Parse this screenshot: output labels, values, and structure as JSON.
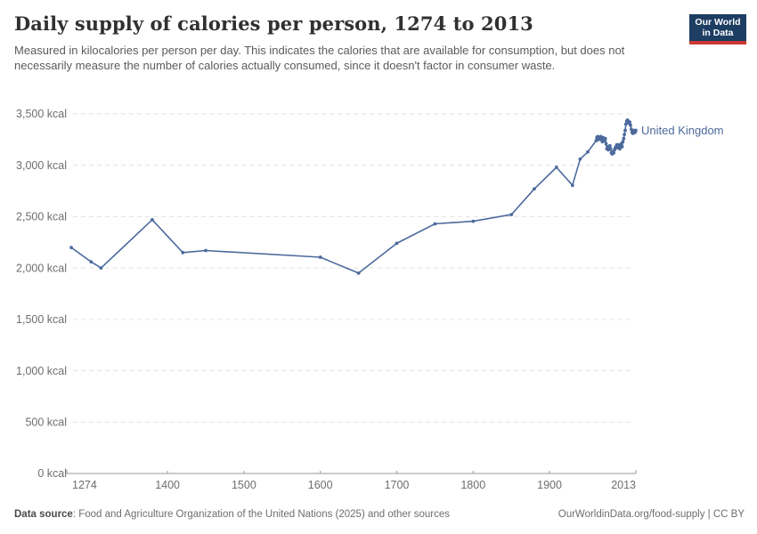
{
  "header": {
    "title": "Daily supply of calories per person, 1274 to 2013",
    "subtitle": "Measured in kilocalories per person per day. This indicates the calories that are available for consumption, but does not necessarily measure the number of calories actually consumed, since it doesn't factor in consumer waste."
  },
  "logo": {
    "line1": "Our World",
    "line2": "in Data",
    "bg_color": "#1d3d63",
    "bar_color": "#cb3a32"
  },
  "chart_data": {
    "type": "line",
    "title": "Daily supply of calories per person, 1274 to 2013",
    "unit": "kcal",
    "xlabel": "",
    "ylabel": "",
    "xlim": [
      1274,
      2013
    ],
    "ylim": [
      0,
      3500
    ],
    "x_ticks": [
      1274,
      1400,
      1500,
      1600,
      1700,
      1800,
      1900,
      2013
    ],
    "y_ticks": [
      0,
      500,
      1000,
      1500,
      2000,
      2500,
      3000,
      3500
    ],
    "y_tick_suffix": " kcal",
    "grid": "horizontal-dashed",
    "legend_position": "line-end-label",
    "line_color": "#4C6A9C",
    "grid_color": "#e2e2e2",
    "axis_color": "#9a9a9a",
    "tick_label_color": "#6e6e6e",
    "series": [
      {
        "name": "United Kingdom",
        "points": [
          [
            1274,
            2200
          ],
          [
            1300,
            2060
          ],
          [
            1313,
            2000
          ],
          [
            1380,
            2470
          ],
          [
            1420,
            2150
          ],
          [
            1450,
            2170
          ],
          [
            1600,
            2105
          ],
          [
            1650,
            1950
          ],
          [
            1700,
            2240
          ],
          [
            1750,
            2430
          ],
          [
            1800,
            2455
          ],
          [
            1850,
            2520
          ],
          [
            1880,
            2770
          ],
          [
            1909,
            2980
          ],
          [
            1930,
            2805
          ],
          [
            1940,
            3060
          ],
          [
            1950,
            3130
          ],
          [
            1961,
            3240
          ],
          [
            1962,
            3270
          ],
          [
            1963,
            3280
          ],
          [
            1964,
            3250
          ],
          [
            1965,
            3260
          ],
          [
            1966,
            3270
          ],
          [
            1967,
            3280
          ],
          [
            1968,
            3250
          ],
          [
            1969,
            3230
          ],
          [
            1970,
            3270
          ],
          [
            1971,
            3260
          ],
          [
            1972,
            3240
          ],
          [
            1973,
            3260
          ],
          [
            1974,
            3210
          ],
          [
            1975,
            3160
          ],
          [
            1976,
            3180
          ],
          [
            1977,
            3150
          ],
          [
            1978,
            3170
          ],
          [
            1979,
            3190
          ],
          [
            1980,
            3160
          ],
          [
            1981,
            3120
          ],
          [
            1982,
            3110
          ],
          [
            1983,
            3130
          ],
          [
            1984,
            3120
          ],
          [
            1985,
            3150
          ],
          [
            1986,
            3170
          ],
          [
            1987,
            3180
          ],
          [
            1988,
            3200
          ],
          [
            1989,
            3170
          ],
          [
            1990,
            3200
          ],
          [
            1991,
            3180
          ],
          [
            1992,
            3160
          ],
          [
            1993,
            3190
          ],
          [
            1994,
            3210
          ],
          [
            1995,
            3180
          ],
          [
            1996,
            3230
          ],
          [
            1997,
            3260
          ],
          [
            1998,
            3300
          ],
          [
            1999,
            3340
          ],
          [
            2000,
            3400
          ],
          [
            2001,
            3430
          ],
          [
            2002,
            3440
          ],
          [
            2003,
            3430
          ],
          [
            2004,
            3410
          ],
          [
            2005,
            3420
          ],
          [
            2006,
            3390
          ],
          [
            2007,
            3350
          ],
          [
            2008,
            3320
          ],
          [
            2009,
            3310
          ],
          [
            2010,
            3330
          ],
          [
            2011,
            3340
          ],
          [
            2012,
            3320
          ],
          [
            2013,
            3340
          ]
        ]
      }
    ]
  },
  "footer": {
    "datasource_label": "Data source",
    "datasource_text": ": Food and Agriculture Organization of the United Nations (2025) and other sources",
    "credit": "OurWorldinData.org/food-supply | CC BY"
  }
}
